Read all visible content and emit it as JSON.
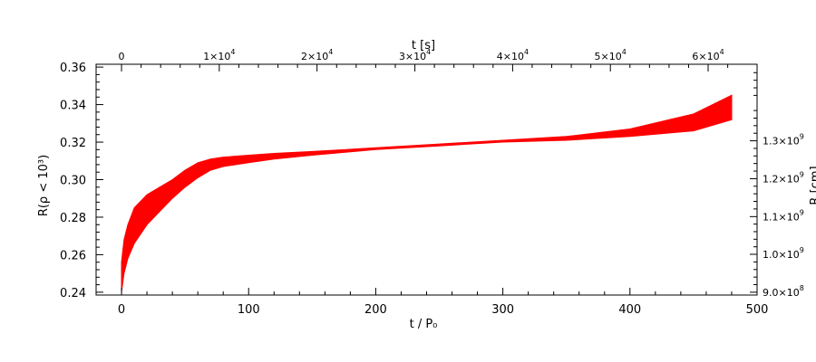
{
  "chart_data": {
    "type": "line",
    "title": "",
    "xlabel": "t / P₀",
    "ylabel": "R(ρ < 10³)",
    "top_xlabel": "t [s]",
    "right_ylabel": "R [cm]",
    "xlim": [
      -20,
      500
    ],
    "ylim": [
      0.2385,
      0.3615
    ],
    "x_ticks": [
      0,
      100,
      200,
      300,
      400,
      500
    ],
    "x_tick_labels": [
      "0",
      "100",
      "200",
      "300",
      "400",
      "500"
    ],
    "y_ticks": [
      0.24,
      0.26,
      0.28,
      0.3,
      0.32,
      0.34,
      0.36
    ],
    "y_tick_labels": [
      "0.24",
      "0.26",
      "0.28",
      "0.30",
      "0.32",
      "0.34",
      "0.36"
    ],
    "top_ticks": [
      {
        "mantissa": "0",
        "exp": ""
      },
      {
        "mantissa": "1×10",
        "exp": "4"
      },
      {
        "mantissa": "2×10",
        "exp": "4"
      },
      {
        "mantissa": "3×10",
        "exp": "4"
      },
      {
        "mantissa": "4×10",
        "exp": "4"
      },
      {
        "mantissa": "5×10",
        "exp": "4"
      },
      {
        "mantissa": "6×10",
        "exp": "4"
      }
    ],
    "top_tick_x": [
      0,
      76.9,
      153.8,
      230.8,
      307.7,
      384.6,
      461.5
    ],
    "right_ticks": [
      {
        "mantissa": "9.0×10",
        "exp": "8"
      },
      {
        "mantissa": "1.0×10",
        "exp": "9"
      },
      {
        "mantissa": "1.1×10",
        "exp": "9"
      },
      {
        "mantissa": "1.2×10",
        "exp": "9"
      },
      {
        "mantissa": "1.3×10",
        "exp": "9"
      }
    ],
    "right_tick_y": [
      0.24,
      0.2602,
      0.2803,
      0.3005,
      0.3207
    ],
    "series": [
      {
        "name": "",
        "color": "#ff0000",
        "x": [
          0,
          2,
          5,
          10,
          20,
          30,
          40,
          50,
          60,
          70,
          80,
          100,
          120,
          150,
          200,
          250,
          300,
          350,
          400,
          450,
          480
        ],
        "upper": [
          0.256,
          0.268,
          0.276,
          0.285,
          0.292,
          0.296,
          0.3,
          0.305,
          0.309,
          0.311,
          0.312,
          0.313,
          0.314,
          0.315,
          0.317,
          0.319,
          0.321,
          0.323,
          0.327,
          0.335,
          0.345
        ],
        "lower": [
          0.24,
          0.25,
          0.258,
          0.266,
          0.276,
          0.283,
          0.29,
          0.296,
          0.301,
          0.305,
          0.307,
          0.309,
          0.311,
          0.313,
          0.316,
          0.318,
          0.32,
          0.321,
          0.323,
          0.326,
          0.332
        ]
      }
    ]
  }
}
